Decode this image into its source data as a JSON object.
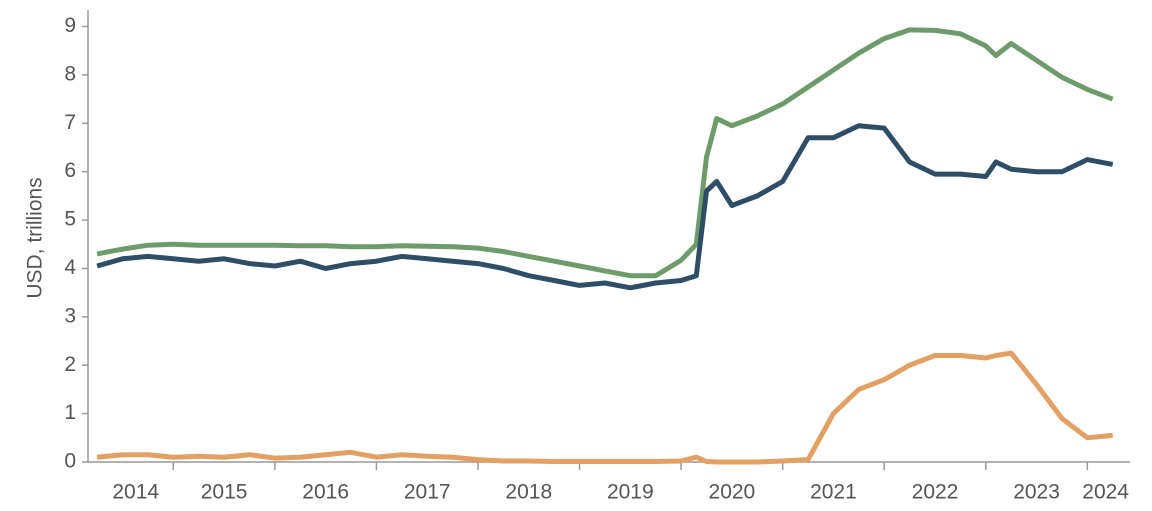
{
  "chart_data": {
    "type": "line",
    "ylabel": "USD, trillions",
    "x": [
      2014.25,
      2014.5,
      2014.75,
      2015.0,
      2015.25,
      2015.5,
      2015.75,
      2016.0,
      2016.25,
      2016.5,
      2016.75,
      2017.0,
      2017.25,
      2017.5,
      2017.75,
      2018.0,
      2018.25,
      2018.5,
      2018.75,
      2019.0,
      2019.25,
      2019.5,
      2019.75,
      2020.0,
      2020.15,
      2020.25,
      2020.35,
      2020.5,
      2020.75,
      2021.0,
      2021.25,
      2021.5,
      2021.75,
      2022.0,
      2022.25,
      2022.5,
      2022.75,
      2023.0,
      2023.1,
      2023.25,
      2023.5,
      2023.75,
      2024.0,
      2024.25
    ],
    "series": [
      {
        "color": "#6d9b6a",
        "values": [
          4.3,
          4.4,
          4.48,
          4.5,
          4.48,
          4.48,
          4.48,
          4.48,
          4.47,
          4.47,
          4.45,
          4.45,
          4.47,
          4.46,
          4.45,
          4.42,
          4.35,
          4.25,
          4.15,
          4.05,
          3.95,
          3.85,
          3.85,
          4.17,
          4.5,
          6.3,
          7.1,
          6.95,
          7.15,
          7.4,
          7.75,
          8.1,
          8.45,
          8.75,
          8.93,
          8.92,
          8.85,
          8.6,
          8.4,
          8.65,
          8.3,
          7.95,
          7.7,
          7.5
        ]
      },
      {
        "color": "#2e4e67",
        "values": [
          4.05,
          4.2,
          4.25,
          4.2,
          4.15,
          4.2,
          4.1,
          4.05,
          4.15,
          4.0,
          4.1,
          4.15,
          4.25,
          4.2,
          4.15,
          4.1,
          4.0,
          3.85,
          3.75,
          3.65,
          3.7,
          3.6,
          3.7,
          3.75,
          3.85,
          5.6,
          5.8,
          5.3,
          5.5,
          5.8,
          6.7,
          6.7,
          6.95,
          6.9,
          6.2,
          5.95,
          5.95,
          5.9,
          6.2,
          6.05,
          6.0,
          6.0,
          6.25,
          6.15
        ]
      },
      {
        "color": "#e4a063",
        "values": [
          0.1,
          0.15,
          0.15,
          0.1,
          0.12,
          0.1,
          0.15,
          0.08,
          0.1,
          0.15,
          0.2,
          0.1,
          0.15,
          0.12,
          0.1,
          0.05,
          0.02,
          0.02,
          0.01,
          0.01,
          0.01,
          0.01,
          0.01,
          0.02,
          0.1,
          0.01,
          0.0,
          0.0,
          0.0,
          0.02,
          0.05,
          1.0,
          1.5,
          1.7,
          2.0,
          2.2,
          2.2,
          2.15,
          2.2,
          2.25,
          1.6,
          0.9,
          0.5,
          0.55
        ]
      }
    ],
    "xlim": [
      2014.16,
      2024.42
    ],
    "xticks": [
      2015,
      2016,
      2017,
      2018,
      2019,
      2020,
      2021,
      2022,
      2023,
      2024
    ],
    "xtick_labels": [
      {
        "value": 2014.63,
        "label": "2014"
      },
      {
        "value": 2015.5,
        "label": "2015"
      },
      {
        "value": 2016.5,
        "label": "2016"
      },
      {
        "value": 2017.5,
        "label": "2017"
      },
      {
        "value": 2018.5,
        "label": "2018"
      },
      {
        "value": 2019.5,
        "label": "2019"
      },
      {
        "value": 2020.5,
        "label": "2020"
      },
      {
        "value": 2021.5,
        "label": "2021"
      },
      {
        "value": 2022.5,
        "label": "2022"
      },
      {
        "value": 2023.5,
        "label": "2023"
      },
      {
        "value": 2024.18,
        "label": "2024"
      }
    ],
    "ylim": [
      0,
      9.3
    ],
    "yticks": [
      0,
      1,
      2,
      3,
      4,
      5,
      6,
      7,
      8,
      9
    ]
  }
}
